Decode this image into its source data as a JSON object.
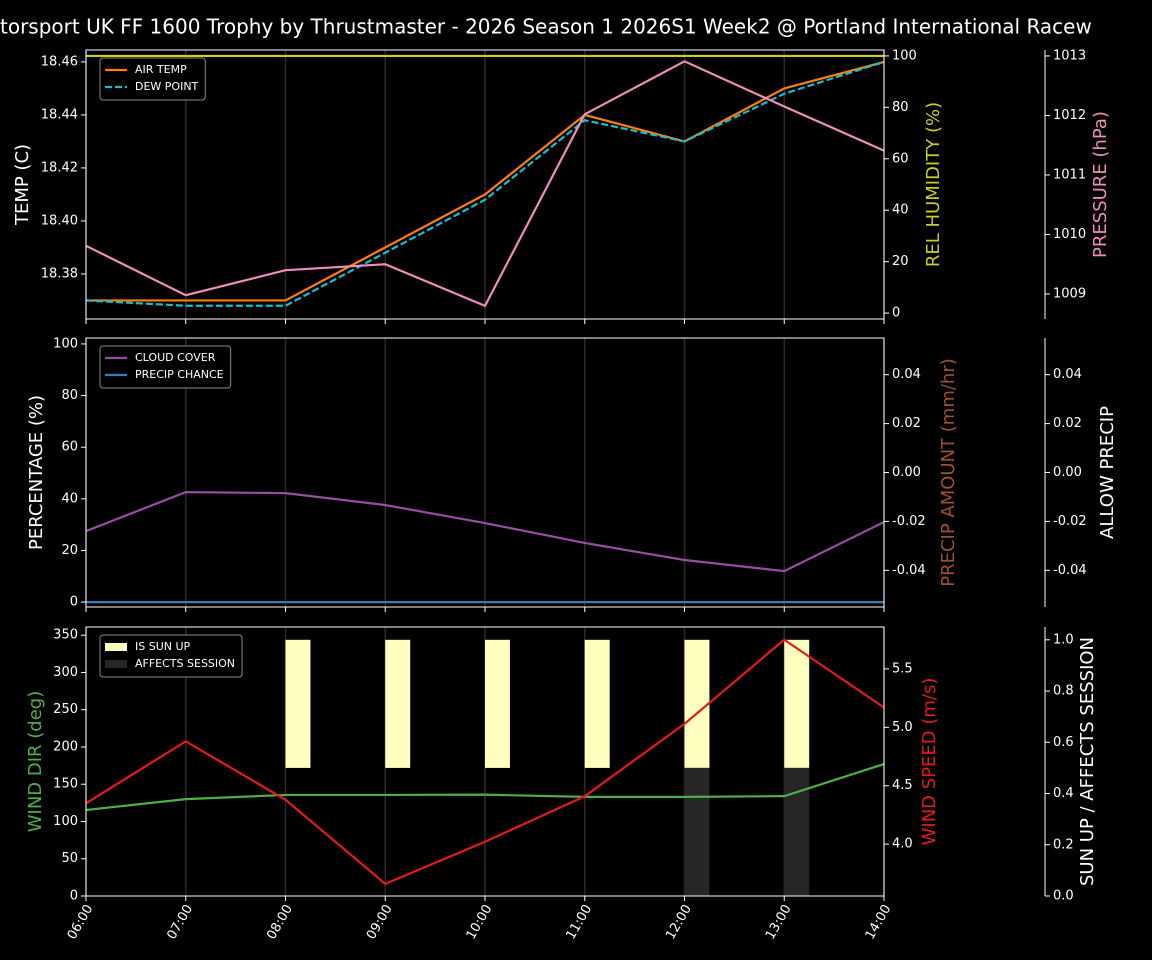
{
  "chart_data": [
    {
      "type": "line",
      "title": "torsport UK FF 1600 Trophy by Thrustmaster - 2026 Season 1 2026S1 Week2 @ Portland International Racew",
      "ylabel": "TEMP (C)",
      "y2label": "REL HUMIDITY (%)",
      "y3label": "PRESSURE (hPa)",
      "ycolor": "#ffffff",
      "y2color": "#cccc22",
      "y3color": "#f08cc0",
      "ylim": [
        18.363,
        18.4645
      ],
      "yticks": [
        18.38,
        {
          "value": 18.4,
          "label": "18.40"
        },
        18.42,
        18.44,
        18.46
      ],
      "y2lim": [
        -2.3,
        102.3
      ],
      "y2ticks": [
        0,
        20,
        40,
        60,
        80,
        100
      ],
      "y3lim": [
        1008.58,
        1013.1
      ],
      "y3ticks": [
        1009,
        1010,
        1011,
        1012,
        1013
      ],
      "grid": true,
      "legend": "upper left",
      "series": [
        {
          "name": "AIR TEMP",
          "color": "#ff7f0e",
          "linestyle": "solid",
          "axis": "y",
          "values": [
            18.37,
            18.37,
            18.37,
            18.39,
            18.41,
            18.44,
            18.43,
            18.45,
            18.46
          ]
        },
        {
          "name": "DEW POINT",
          "color": "#17becf",
          "linestyle": "dashed",
          "axis": "y",
          "values": [
            18.37,
            18.368,
            18.368,
            18.388,
            18.408,
            18.438,
            18.43,
            18.448,
            18.46
          ]
        },
        {
          "color": "#cccc22",
          "linestyle": "solid",
          "axis": "y2",
          "values": [
            100,
            100,
            100,
            100,
            100,
            100,
            100,
            100,
            100
          ]
        },
        {
          "color": "#f08cc0",
          "linestyle": "solid",
          "axis": "y3",
          "values": [
            1009.81,
            1008.98,
            1009.4,
            1009.5,
            1008.8,
            1012.02,
            1012.91,
            1012.15,
            1011.41
          ]
        }
      ]
    },
    {
      "type": "line",
      "ylabel": "PERCENTAGE (%)",
      "y2label": "PRECIP AMOUNT (mm/hr)",
      "y3label": "ALLOW PRECIP",
      "ycolor": "#ffffff",
      "y2color": "#a0522d",
      "y3color": "#ffffff",
      "ylim": [
        -1.9,
        102.3
      ],
      "yticks": [
        0,
        20,
        40,
        60,
        80,
        100
      ],
      "y2lim": [
        -0.055,
        0.055
      ],
      "y2ticks": [
        -0.04,
        -0.02,
        {
          "value": 0,
          "label": "0.00"
        },
        0.02,
        0.04
      ],
      "y3lim": [
        -0.055,
        0.055
      ],
      "y3ticks": [
        -0.04,
        -0.02,
        {
          "value": 0,
          "label": "0.00"
        },
        0.02,
        0.04
      ],
      "grid": true,
      "legend": "upper left",
      "series": [
        {
          "name": "CLOUD COVER",
          "color": "#984ea3",
          "linestyle": "solid",
          "axis": "y",
          "values": [
            27.5,
            42.6,
            42.2,
            37.6,
            30.6,
            22.9,
            16.3,
            12,
            31
          ]
        },
        {
          "name": "PRECIP CHANCE",
          "color": "#377eb8",
          "linestyle": "solid",
          "axis": "y",
          "values": [
            0,
            0,
            0,
            0,
            0,
            0,
            0,
            0,
            0
          ]
        }
      ]
    },
    {
      "type": "combo",
      "categories": [
        "06:00",
        "07:00",
        "08:00",
        "09:00",
        "10:00",
        "11:00",
        "12:00",
        "13:00",
        "14:00"
      ],
      "ylabel": "WIND DIR (deg)",
      "y2label": "WIND SPEED (m/s)",
      "y3label": "SUN UP / AFFECTS SESSION",
      "ycolor": "#4daf4a",
      "y2color": "#e41a1c",
      "y3color": "#ffffff",
      "ylim": [
        0,
        361
      ],
      "yticks": [
        0,
        50,
        100,
        150,
        200,
        250,
        300,
        350
      ],
      "y2lim": [
        3.556,
        5.859
      ],
      "y2ticks": [
        {
          "value": 4,
          "label": "4.0"
        },
        4.5,
        {
          "value": 5,
          "label": "5.0"
        },
        5.5
      ],
      "y3lim": [
        0,
        1.05
      ],
      "y3ticks": [
        {
          "value": 0,
          "label": "0.0"
        },
        0.2,
        0.4,
        0.6,
        0.8,
        {
          "value": 1,
          "label": "1.0"
        }
      ],
      "grid": true,
      "legend": "upper left",
      "series": [
        {
          "name": "IS SUN UP",
          "type": "bar",
          "half": "upper",
          "color": "#ffffc0",
          "axis": "y3",
          "values": [
            0,
            0,
            1,
            1,
            1,
            1,
            1,
            1,
            0
          ]
        },
        {
          "name": "AFFECTS SESSION",
          "type": "bar",
          "half": "lower",
          "color": "#262626",
          "axis": "y3",
          "values": [
            0,
            0,
            0,
            0,
            0,
            0,
            1,
            1,
            0
          ]
        },
        {
          "type": "line",
          "color": "#4daf4a",
          "linestyle": "solid",
          "axis": "y",
          "values": [
            115.4,
            130,
            135.6,
            135.6,
            136,
            133,
            133,
            134,
            177
          ]
        },
        {
          "type": "line",
          "color": "#e41a1c",
          "linestyle": "solid",
          "axis": "y2",
          "values": [
            4.35,
            4.88,
            4.38,
            3.66,
            4.02,
            4.41,
            5.03,
            5.75,
            5.17
          ]
        }
      ]
    }
  ]
}
